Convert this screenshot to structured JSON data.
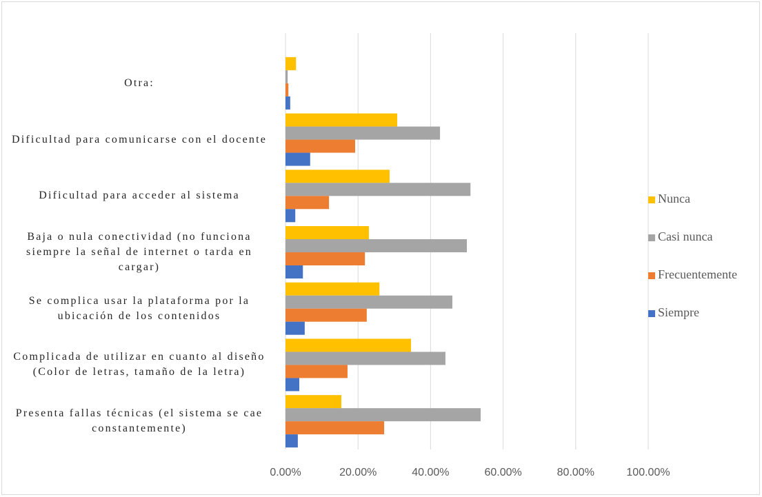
{
  "chart_data": {
    "type": "barh",
    "categories": [
      "Otra:",
      "Dificultad para comunicarse con el docente",
      "Dificultad para acceder al sistema",
      "Baja o nula conectividad (no funciona siempre la señal de internet o tarda en cargar)",
      "Se complica usar la plataforma por la ubicación de los contenidos",
      "Complicada de utilizar en cuanto al diseño (Color de letras, tamaño de la letra)",
      "Presenta fallas técnicas (el sistema se cae constantemente)"
    ],
    "series": [
      {
        "name": "Nunca",
        "color": "#ffc000",
        "values": [
          2.9,
          30.8,
          28.7,
          23.0,
          25.9,
          34.6,
          15.4
        ]
      },
      {
        "name": "Casi nunca",
        "color": "#a5a5a5",
        "values": [
          0.6,
          42.6,
          51.0,
          50.0,
          46.0,
          44.1,
          53.8
        ]
      },
      {
        "name": "Frecuentemente",
        "color": "#ed7d31",
        "values": [
          0.8,
          19.2,
          12.0,
          21.9,
          22.4,
          17.1,
          27.2
        ]
      },
      {
        "name": "Siempre",
        "color": "#4472c4",
        "values": [
          1.3,
          6.8,
          2.7,
          4.8,
          5.3,
          3.8,
          3.4
        ]
      }
    ],
    "xlim": [
      0,
      100
    ],
    "xticks": [
      {
        "value": 0,
        "label": "0.00%"
      },
      {
        "value": 20,
        "label": "20.00%"
      },
      {
        "value": 40,
        "label": "40.00%"
      },
      {
        "value": 60,
        "label": "60.00%"
      },
      {
        "value": 80,
        "label": "80.00%"
      },
      {
        "value": 100,
        "label": "100.00%"
      }
    ],
    "grid": true,
    "legend": "right"
  }
}
